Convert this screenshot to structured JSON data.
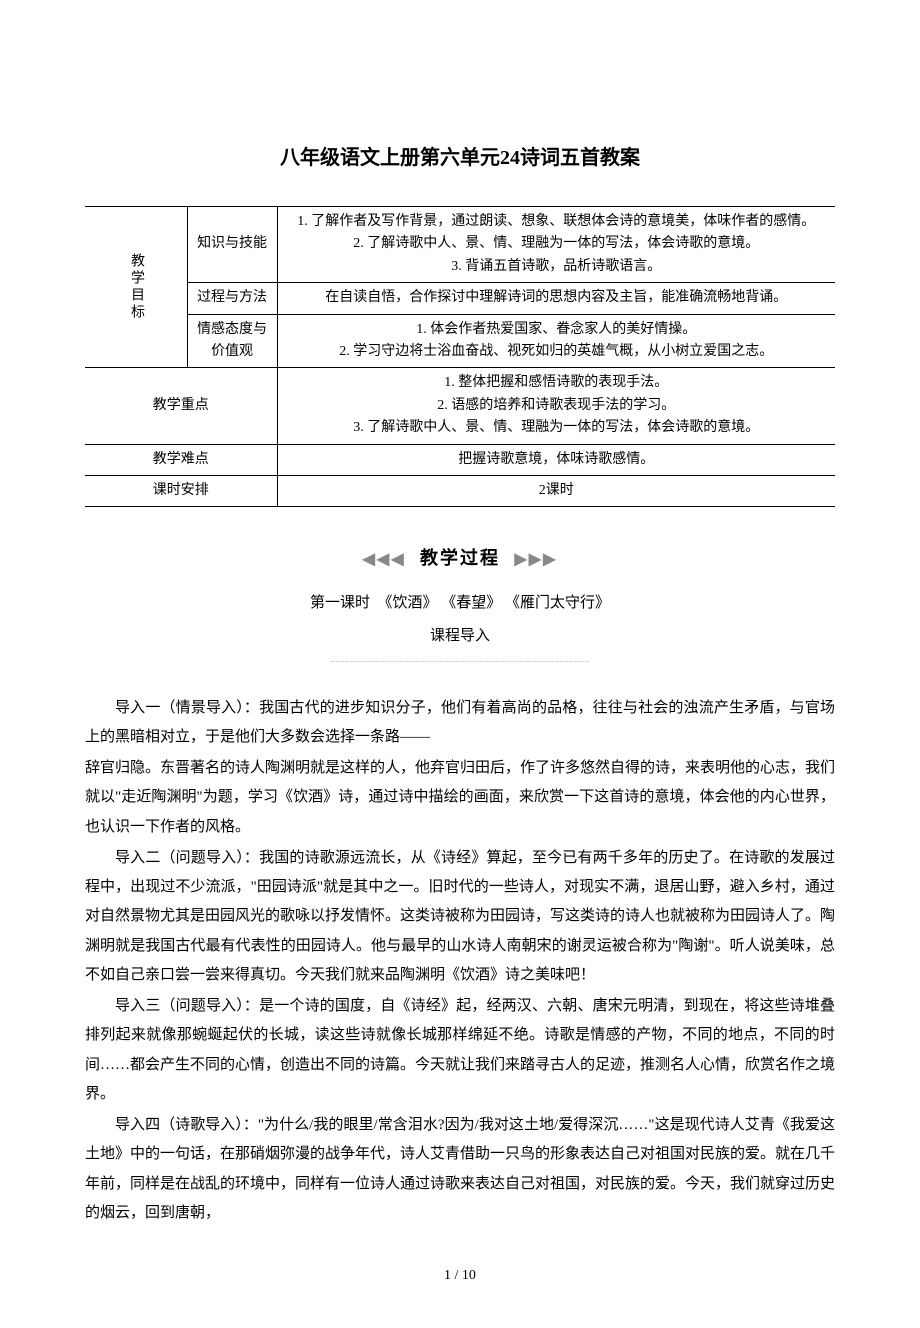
{
  "title": "八年级语文上册第六单元24诗词五首教案",
  "table": {
    "row_group_label": "教学目标",
    "rows": [
      {
        "label": "知识与技能",
        "content": "1. 了解作者及写作背景，通过朗读、想象、联想体会诗的意境美，体味作者的感情。\n2. 了解诗歌中人、景、情、理融为一体的写法，体会诗歌的意境。\n3. 背诵五首诗歌，品析诗歌语言。"
      },
      {
        "label": "过程与方法",
        "content": "在自读自悟，合作探讨中理解诗词的思想内容及主旨，能准确流畅地背诵。"
      },
      {
        "label": "情感态度与价值观",
        "content": "1. 体会作者热爱国家、眷念家人的美好情操。\n2. 学习守边将士浴血奋战、视死如归的英雄气概，从小树立爱国之志。"
      }
    ],
    "other_rows": [
      {
        "label": "教学重点",
        "content": "1. 整体把握和感悟诗歌的表现手法。\n2. 语感的培养和诗歌表现手法的学习。\n3. 了解诗歌中人、景、情、理融为一体的写法，体会诗歌的意境。"
      },
      {
        "label": "教学难点",
        "content": "把握诗歌意境，体味诗歌感情。"
      },
      {
        "label": "课时安排",
        "content": "2课时"
      }
    ]
  },
  "divider_label": "教学过程",
  "lesson_line": "第一课时　《饮酒》 《春望》 《雁门太守行》",
  "sub_heading": "课程导入",
  "paragraphs": [
    "导入一（情景导入）：我国古代的进步知识分子，他们有着高尚的品格，往往与社会的浊流产生矛盾，与官场上的黑暗相对立，于是他们大多数会选择一条路——",
    "辞官归隐。东晋著名的诗人陶渊明就是这样的人，他弃官归田后，作了许多悠然自得的诗，来表明他的心志，我们就以\"走近陶渊明\"为题，学习《饮酒》诗，通过诗中描绘的画面，来欣赏一下这首诗的意境，体会他的内心世界，也认识一下作者的风格。",
    "导入二（问题导入）：我国的诗歌源远流长，从《诗经》算起，至今已有两千多年的历史了。在诗歌的发展过程中，出现过不少流派，\"田园诗派\"就是其中之一。旧时代的一些诗人，对现实不满，退居山野，避入乡村，通过对自然景物尤其是田园风光的歌咏以抒发情怀。这类诗被称为田园诗，写这类诗的诗人也就被称为田园诗人了。陶渊明就是我国古代最有代表性的田园诗人。他与最早的山水诗人南朝宋的谢灵运被合称为\"陶谢\"。听人说美味，总不如自己亲口尝一尝来得真切。今天我们就来品陶渊明《饮酒》诗之美味吧！",
    "导入三（问题导入）：是一个诗的国度，自《诗经》起，经两汉、六朝、唐宋元明清，到现在，将这些诗堆叠排列起来就像那蜿蜒起伏的长城，读这些诗就像长城那样绵延不绝。诗歌是情感的产物，不同的地点，不同的时间……都会产生不同的心情，创造出不同的诗篇。今天就让我们来踏寻古人的足迹，推测名人心情，欣赏名作之境界。",
    "导入四（诗歌导入）：\"为什么/我的眼里/常含泪水?因为/我对这土地/爱得深沉……\"这是现代诗人艾青《我爱这土地》中的一句话，在那硝烟弥漫的战争年代，诗人艾青借助一只鸟的形象表达自己对祖国对民族的爱。就在几千年前，同样是在战乱的环境中，同样有一位诗人通过诗歌来表达自己对祖国，对民族的爱。今天，我们就穿过历史的烟云，回到唐朝，"
  ],
  "page_number": "1 / 10"
}
